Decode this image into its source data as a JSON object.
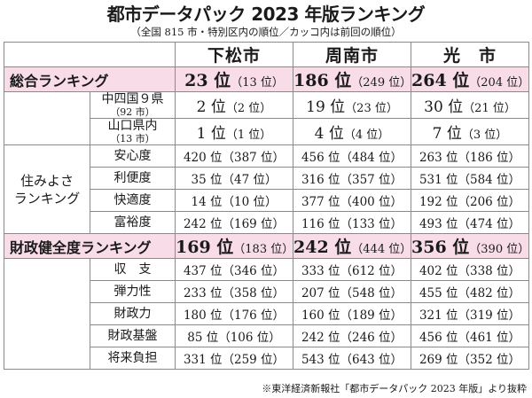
{
  "title": "都市データパック 2023 年版ランキング",
  "subtitle": "（全国 815 市・特別区内の順位／カッコ内は前回の順位）",
  "cities": [
    "下松市",
    "周南市",
    "光　市"
  ],
  "overall": {
    "label": "総合ランキング",
    "values": [
      {
        "rank": "23 位",
        "prev": "（13 位）"
      },
      {
        "rank": "186 位",
        "prev": "（249 位）"
      },
      {
        "rank": "264 位",
        "prev": "（204 位）"
      }
    ]
  },
  "regional": [
    {
      "label": "中四国９県",
      "note": "（92 市）",
      "values": [
        {
          "rank": "2 位",
          "prev": "（2 位）"
        },
        {
          "rank": "19 位",
          "prev": "（23 位）"
        },
        {
          "rank": "30 位",
          "prev": "（21 位）"
        }
      ]
    },
    {
      "label": "山口県内",
      "note": "（13 市）",
      "values": [
        {
          "rank": "1 位",
          "prev": "（1 位）"
        },
        {
          "rank": "4 位",
          "prev": "（4 位）"
        },
        {
          "rank": "7 位",
          "prev": "（3 位）"
        }
      ]
    }
  ],
  "livability": {
    "label_line1": "住みよさ",
    "label_line2": "ランキング",
    "rows": [
      {
        "label": "安心度",
        "values": [
          "420 位（387 位）",
          "456 位（484 位）",
          "263 位（186 位）"
        ]
      },
      {
        "label": "利便度",
        "values": [
          "35 位（47 位）",
          "316 位（357 位）",
          "531 位（584 位）"
        ]
      },
      {
        "label": "快適度",
        "values": [
          "14 位（10 位）",
          "377 位（400 位）",
          "192 位（206 位）"
        ]
      },
      {
        "label": "富裕度",
        "values": [
          "242 位（169 位）",
          "116 位（133 位）",
          "493 位（474 位）"
        ]
      }
    ]
  },
  "fiscal": {
    "label": "財政健全度ランキング",
    "values": [
      {
        "rank": "169 位",
        "prev": "（183 位）"
      },
      {
        "rank": "242 位",
        "prev": "（444 位）"
      },
      {
        "rank": "356 位",
        "prev": "（390 位）"
      }
    ],
    "rows": [
      {
        "label": "収　支",
        "values": [
          "437 位（346 位）",
          "333 位（612 位）",
          "402 位（338 位）"
        ]
      },
      {
        "label": "弾力性",
        "values": [
          "233 位（358 位）",
          "207 位（548 位）",
          "455 位（482 位）"
        ]
      },
      {
        "label": "財政力",
        "values": [
          "180 位（176 位）",
          "160 位（189 位）",
          "321 位（319 位）"
        ]
      },
      {
        "label": "財政基盤",
        "values": [
          "85 位（106 位）",
          "242 位（246 位）",
          "456 位（461 位）"
        ]
      },
      {
        "label": "将来負担",
        "values": [
          "331 位（259 位）",
          "543 位（643 位）",
          "269 位（352 位）"
        ]
      }
    ]
  },
  "footnote": "※東洋経済新報社「都市データパック 2023 年版」より抜粋",
  "colors": {
    "highlight": "#f8dde8",
    "border": "#8a8a8a"
  }
}
